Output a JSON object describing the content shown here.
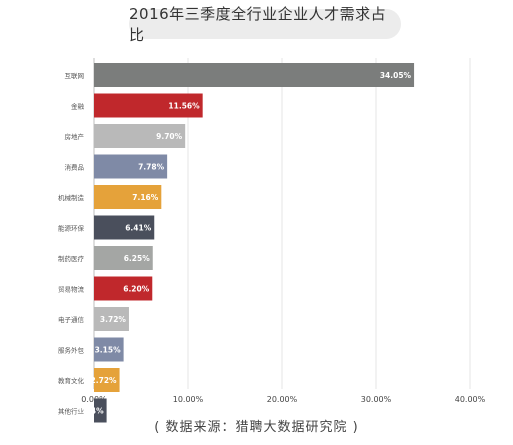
{
  "title": "2016年三季度全行业企业人才需求占比",
  "source": "( 数据来源：猎聘大数据研究院 )",
  "chart_data": {
    "type": "bar",
    "orientation": "horizontal",
    "title": "2016年三季度全行业企业人才需求占比",
    "categories": [
      "互联网",
      "金融",
      "房地产",
      "消费品",
      "机械制造",
      "能源环保",
      "制药医疗",
      "贸易物流",
      "电子通信",
      "服务外包",
      "教育文化",
      "其他行业"
    ],
    "values": [
      34.05,
      11.56,
      9.7,
      7.78,
      7.16,
      6.41,
      6.25,
      6.2,
      3.72,
      3.15,
      2.72,
      1.34
    ],
    "value_labels": [
      "34.05%",
      "11.56%",
      "9.70%",
      "7.78%",
      "7.16%",
      "6.41%",
      "6.25%",
      "6.20%",
      "3.72%",
      "3.15%",
      "2.72%",
      "1.34%"
    ],
    "colors": [
      "#7b7d7c",
      "#c0282c",
      "#b9b9b9",
      "#7f8aa6",
      "#e5a23a",
      "#4a4f5c",
      "#a4a6a4",
      "#c0282c",
      "#b9b9b9",
      "#7f8aa6",
      "#e5a23a",
      "#4a4f5c"
    ],
    "xlim": [
      0,
      40
    ],
    "xticks": [
      0,
      10,
      20,
      30,
      40
    ],
    "xtick_labels": [
      "0.00%",
      "10.00%",
      "20.00%",
      "30.00%",
      "40.00%"
    ],
    "grid": true,
    "legend": "none"
  }
}
